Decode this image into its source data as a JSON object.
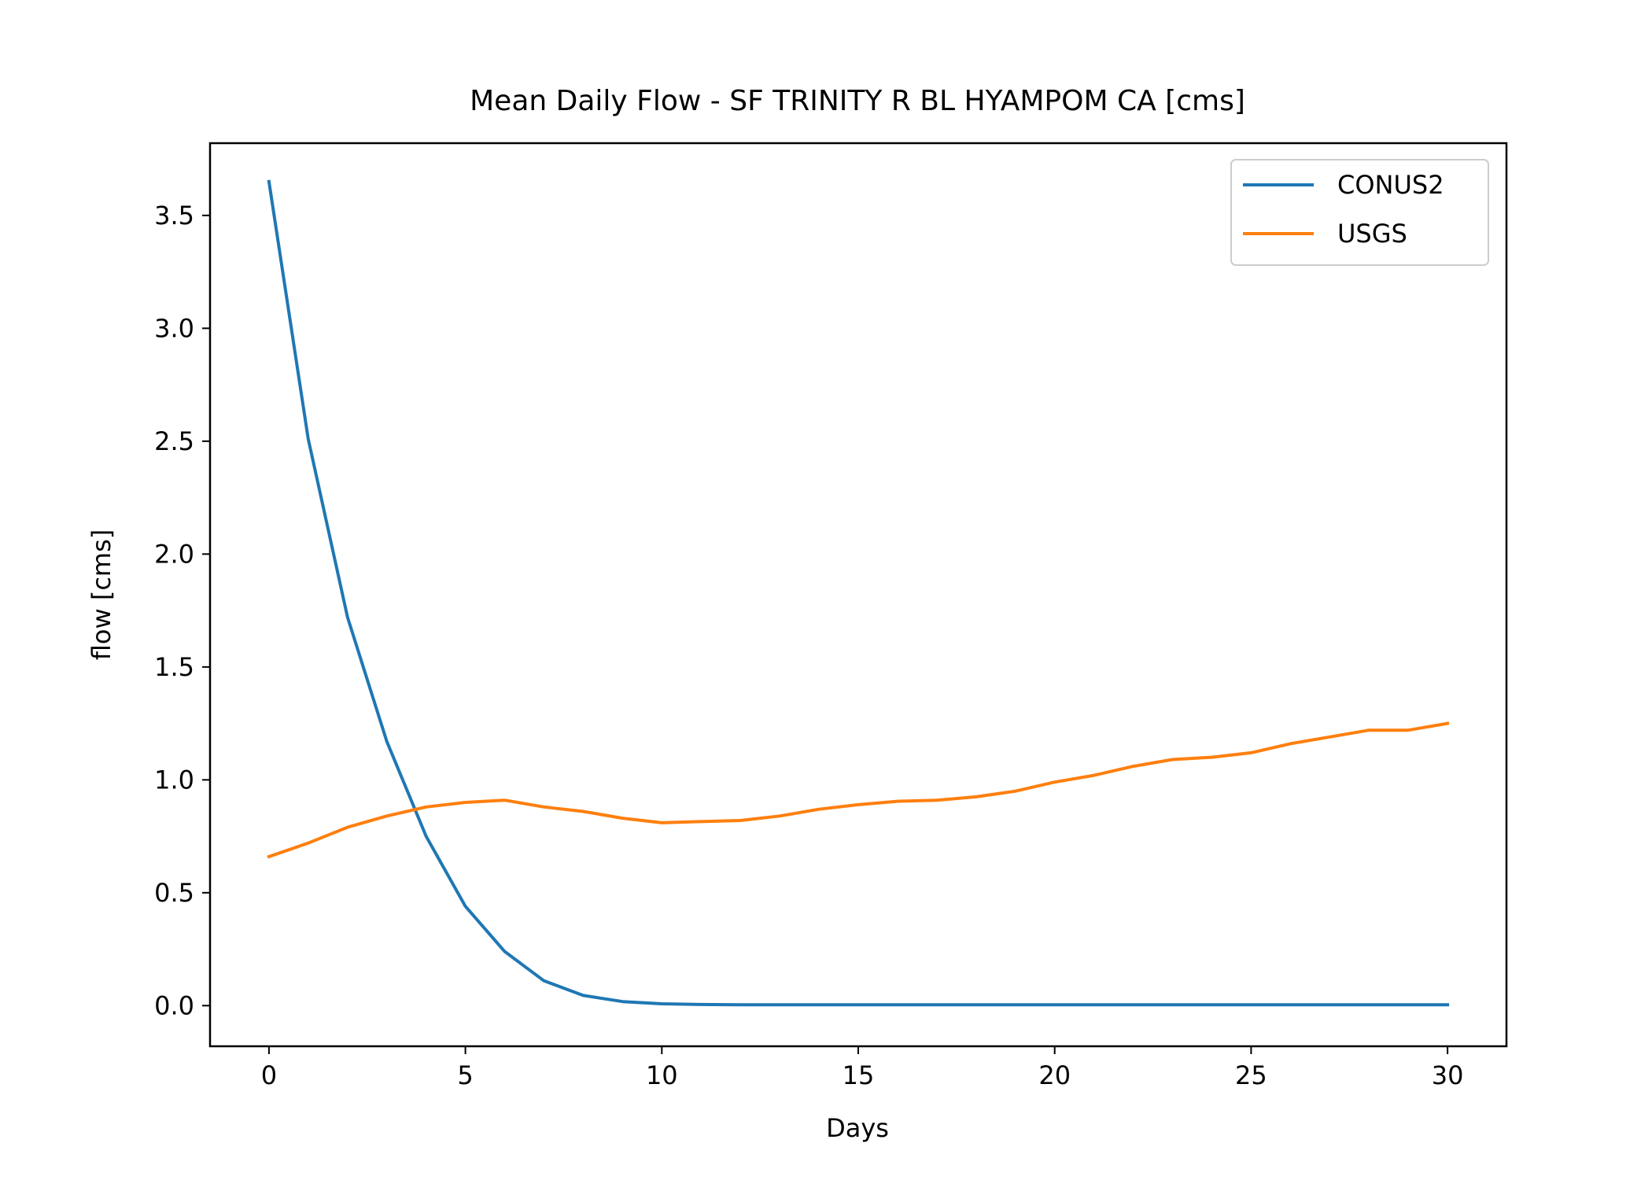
{
  "chart_data": {
    "type": "line",
    "title": "Mean Daily Flow - SF TRINITY R BL HYAMPOM CA [cms]",
    "xlabel": "Days",
    "ylabel": "flow [cms]",
    "xlim": [
      -1.5,
      31.5
    ],
    "ylim": [
      -0.18,
      3.82
    ],
    "xticks": [
      0,
      5,
      10,
      15,
      20,
      25,
      30
    ],
    "xtick_labels": [
      "0",
      "5",
      "10",
      "15",
      "20",
      "25",
      "30"
    ],
    "yticks": [
      0.0,
      0.5,
      1.0,
      1.5,
      2.0,
      2.5,
      3.0,
      3.5
    ],
    "ytick_labels": [
      "0.0",
      "0.5",
      "1.0",
      "1.5",
      "2.0",
      "2.5",
      "3.0",
      "3.5"
    ],
    "grid": false,
    "legend_position": "top-right",
    "x": [
      0,
      1,
      2,
      3,
      4,
      5,
      6,
      7,
      8,
      9,
      10,
      11,
      12,
      13,
      14,
      15,
      16,
      17,
      18,
      19,
      20,
      21,
      22,
      23,
      24,
      25,
      26,
      27,
      28,
      29,
      30
    ],
    "series": [
      {
        "name": "CONUS2",
        "color": "#1f77b4",
        "values": [
          3.65,
          2.51,
          1.72,
          1.17,
          0.75,
          0.44,
          0.24,
          0.11,
          0.045,
          0.018,
          0.008,
          0.005,
          0.004,
          0.004,
          0.004,
          0.004,
          0.004,
          0.004,
          0.004,
          0.004,
          0.004,
          0.004,
          0.004,
          0.004,
          0.004,
          0.004,
          0.004,
          0.004,
          0.004,
          0.004,
          0.004
        ]
      },
      {
        "name": "USGS",
        "color": "#ff7f0e",
        "values": [
          0.66,
          0.72,
          0.79,
          0.84,
          0.88,
          0.9,
          0.91,
          0.88,
          0.86,
          0.83,
          0.81,
          0.815,
          0.82,
          0.84,
          0.87,
          0.89,
          0.905,
          0.91,
          0.925,
          0.95,
          0.99,
          1.02,
          1.06,
          1.09,
          1.1,
          1.12,
          1.16,
          1.19,
          1.22,
          1.22,
          1.25
        ]
      }
    ]
  }
}
